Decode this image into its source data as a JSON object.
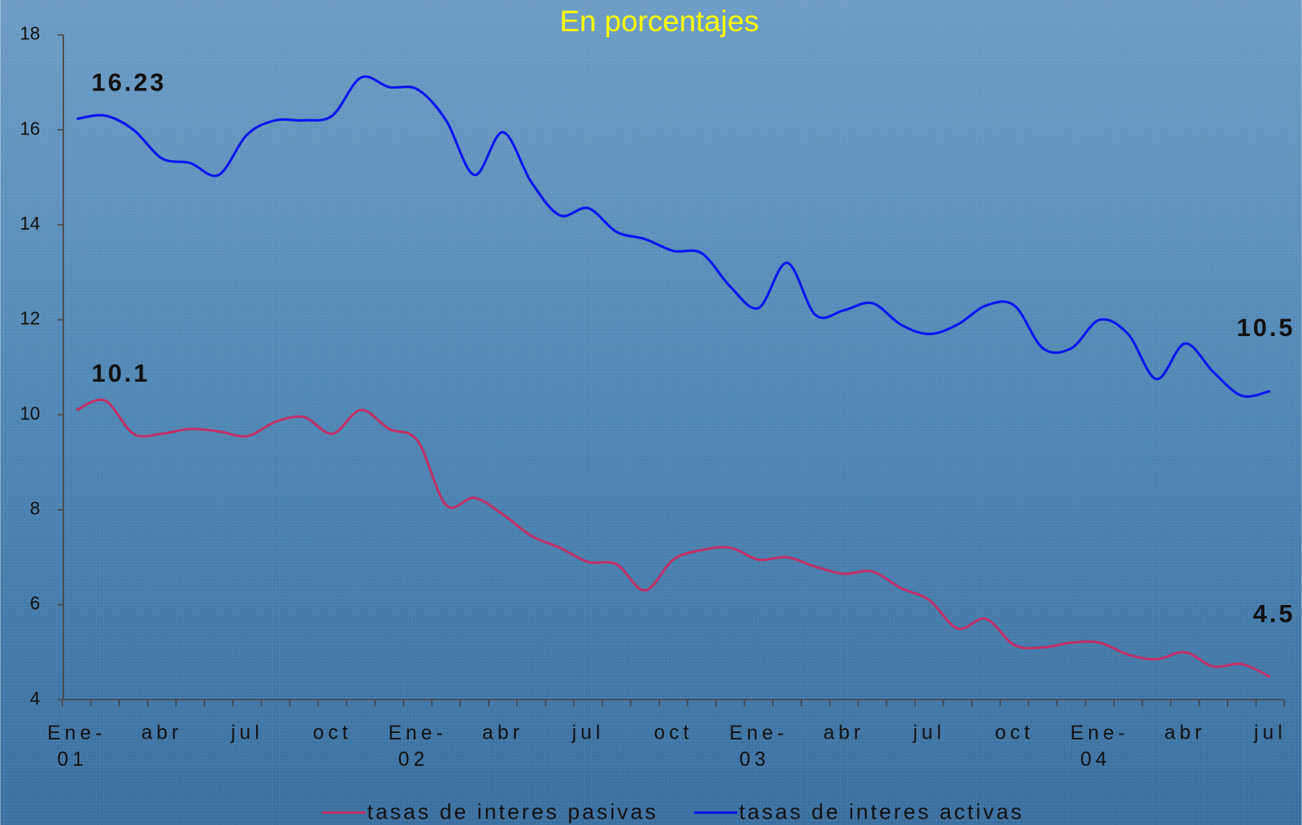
{
  "chart_data": {
    "type": "line",
    "title": "En porcentajes",
    "categories": [
      "Ene-01",
      null,
      null,
      "abr",
      null,
      null,
      "jul",
      null,
      null,
      "oct",
      null,
      null,
      "Ene-02",
      null,
      null,
      "abr",
      null,
      null,
      "jul",
      null,
      null,
      "oct",
      null,
      null,
      "Ene-03",
      null,
      null,
      "abr",
      null,
      null,
      "jul",
      null,
      null,
      "oct",
      null,
      null,
      "Ene-04",
      null,
      null,
      "abr",
      null,
      null,
      "jul"
    ],
    "series": [
      {
        "name": "tasas de interes pasivas",
        "color": "#c0306a",
        "values": [
          10.1,
          10.3,
          9.6,
          9.6,
          9.7,
          9.65,
          9.55,
          9.85,
          9.95,
          9.6,
          10.1,
          9.7,
          9.45,
          8.1,
          8.25,
          7.9,
          7.45,
          7.2,
          6.9,
          6.85,
          6.3,
          6.95,
          7.15,
          7.2,
          6.95,
          7.0,
          6.8,
          6.65,
          6.7,
          6.35,
          6.1,
          5.5,
          5.7,
          5.15,
          5.1,
          5.2,
          5.2,
          4.95,
          4.85,
          5.0,
          4.7,
          4.75,
          4.48
        ],
        "value_labels": [
          "10.1",
          null,
          null,
          null,
          null,
          null,
          null,
          null,
          null,
          null,
          null,
          null,
          null,
          null,
          null,
          null,
          null,
          null,
          null,
          null,
          null,
          null,
          null,
          null,
          null,
          null,
          null,
          null,
          null,
          null,
          null,
          null,
          null,
          null,
          null,
          null,
          null,
          null,
          null,
          null,
          null,
          null,
          "4.5"
        ]
      },
      {
        "name": "tasas de interes activas",
        "color": "#0a14f0",
        "values": [
          16.23,
          16.3,
          16.0,
          15.4,
          15.3,
          15.05,
          15.9,
          16.2,
          16.2,
          16.3,
          17.1,
          16.9,
          16.85,
          16.2,
          15.05,
          15.95,
          14.9,
          14.2,
          14.35,
          13.85,
          13.7,
          13.45,
          13.4,
          12.7,
          12.25,
          13.2,
          12.1,
          12.2,
          12.35,
          11.9,
          11.7,
          11.9,
          12.3,
          12.3,
          11.4,
          11.4,
          12.0,
          11.7,
          10.75,
          11.5,
          10.9,
          10.4,
          10.5
        ],
        "value_labels": [
          "16.23",
          null,
          null,
          null,
          null,
          null,
          null,
          null,
          null,
          null,
          null,
          null,
          null,
          null,
          null,
          null,
          null,
          null,
          null,
          null,
          null,
          null,
          null,
          null,
          null,
          null,
          null,
          null,
          null,
          null,
          null,
          null,
          null,
          null,
          null,
          null,
          null,
          null,
          null,
          null,
          null,
          null,
          "10.5"
        ]
      }
    ],
    "ylim": [
      4,
      18
    ],
    "yticks": [
      4,
      6,
      8,
      10,
      12,
      14,
      16,
      18
    ],
    "grid": false,
    "legend": "bottom"
  }
}
